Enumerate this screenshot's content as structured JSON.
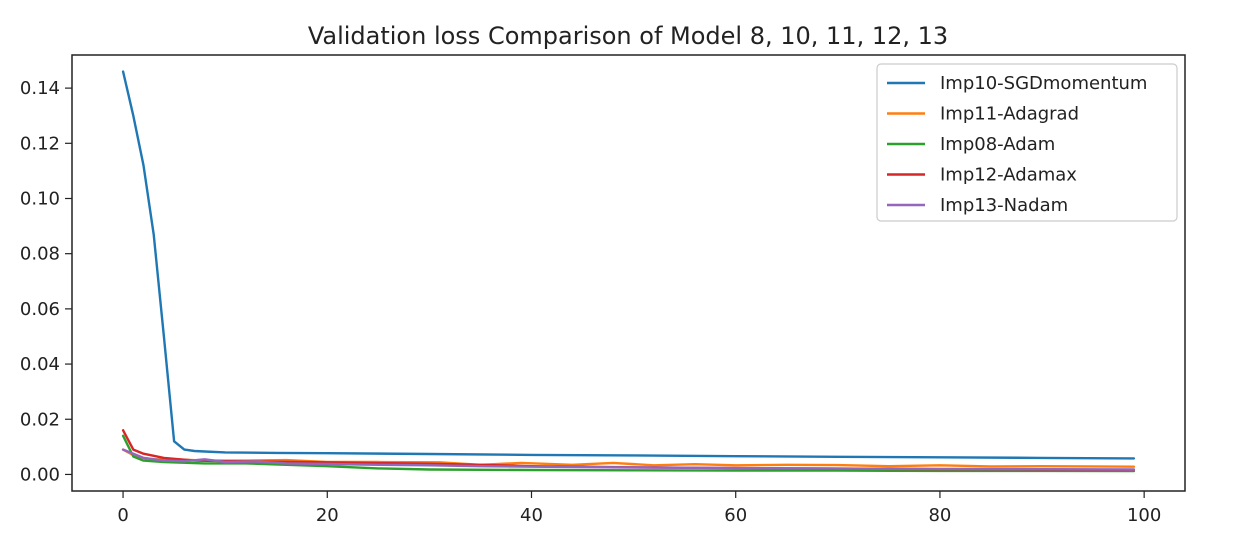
{
  "chart_data": {
    "type": "line",
    "title": "Validation loss Comparison of Model 8, 10, 11, 12, 13",
    "xlabel": "",
    "ylabel": "",
    "xlim": [
      -5,
      104
    ],
    "ylim": [
      -0.006,
      0.152
    ],
    "xticks": [
      0,
      20,
      40,
      60,
      80,
      100
    ],
    "xtick_labels": [
      "0",
      "20",
      "40",
      "60",
      "80",
      "100"
    ],
    "yticks": [
      0.0,
      0.02,
      0.04,
      0.06,
      0.08,
      0.1,
      0.12,
      0.14
    ],
    "ytick_labels": [
      "0.00",
      "0.02",
      "0.04",
      "0.06",
      "0.08",
      "0.10",
      "0.12",
      "0.14"
    ],
    "grid": false,
    "legend_position": "top-right",
    "series": [
      {
        "name": "Imp10-SGDmomentum",
        "color": "#1f77b4",
        "x": [
          0,
          1,
          2,
          3,
          4,
          5,
          6,
          7,
          8,
          10,
          15,
          20,
          30,
          40,
          50,
          60,
          70,
          80,
          90,
          99
        ],
        "y": [
          0.146,
          0.13,
          0.112,
          0.087,
          0.05,
          0.012,
          0.009,
          0.0085,
          0.0083,
          0.008,
          0.0078,
          0.0077,
          0.0074,
          0.0071,
          0.0069,
          0.0066,
          0.0064,
          0.0062,
          0.006,
          0.0058
        ]
      },
      {
        "name": "Imp11-Adagrad",
        "color": "#ff7f0e",
        "x": [
          0,
          1,
          2,
          3,
          5,
          8,
          12,
          16,
          20,
          25,
          31,
          35,
          39,
          44,
          48,
          52,
          56,
          60,
          65,
          70,
          75,
          80,
          85,
          90,
          95,
          99
        ],
        "y": [
          0.009,
          0.007,
          0.006,
          0.0055,
          0.0055,
          0.005,
          0.005,
          0.0052,
          0.0045,
          0.0045,
          0.0044,
          0.0035,
          0.0042,
          0.0035,
          0.0042,
          0.0033,
          0.0037,
          0.0033,
          0.0035,
          0.0034,
          0.003,
          0.0033,
          0.0029,
          0.003,
          0.0029,
          0.0028
        ]
      },
      {
        "name": "Imp08-Adam",
        "color": "#2ca02c",
        "x": [
          0,
          1,
          2,
          4,
          8,
          12,
          16,
          20,
          25,
          30,
          40,
          50,
          60,
          70,
          80,
          90,
          99
        ],
        "y": [
          0.014,
          0.0065,
          0.005,
          0.0045,
          0.004,
          0.004,
          0.0035,
          0.003,
          0.0022,
          0.0018,
          0.0016,
          0.0015,
          0.0014,
          0.0014,
          0.0013,
          0.0013,
          0.0012
        ]
      },
      {
        "name": "Imp12-Adamax",
        "color": "#d62728",
        "x": [
          0,
          1,
          2,
          4,
          7,
          10,
          15,
          20,
          25,
          30,
          35,
          40,
          50,
          60,
          70,
          80,
          90,
          99
        ],
        "y": [
          0.016,
          0.009,
          0.0075,
          0.006,
          0.005,
          0.0048,
          0.0046,
          0.0044,
          0.0041,
          0.0039,
          0.0035,
          0.003,
          0.0026,
          0.0023,
          0.0021,
          0.0019,
          0.0018,
          0.0017
        ]
      },
      {
        "name": "Imp13-Nadam",
        "color": "#9467bd",
        "x": [
          0,
          1,
          2,
          4,
          6,
          8,
          10,
          13,
          16,
          20,
          25,
          30,
          35,
          40,
          50,
          60,
          70,
          80,
          90,
          99
        ],
        "y": [
          0.009,
          0.0075,
          0.006,
          0.005,
          0.0048,
          0.0055,
          0.0045,
          0.0047,
          0.004,
          0.0038,
          0.0035,
          0.0033,
          0.003,
          0.0028,
          0.0025,
          0.0023,
          0.0021,
          0.002,
          0.0019,
          0.0018
        ]
      }
    ]
  }
}
